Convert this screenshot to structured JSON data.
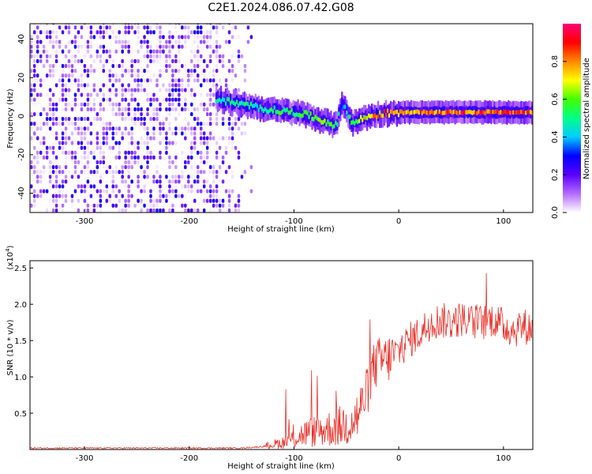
{
  "title": "C2E1.2024.086.07.42.G08",
  "chart_data": [
    {
      "type": "heatmap",
      "xlabel": "Height of straight line (km)",
      "ylabel": "Frequency (Hz)",
      "xlim": [
        -352,
        128
      ],
      "ylim": [
        -50,
        48
      ],
      "x_ticks": [
        -300,
        -200,
        -100,
        0,
        100
      ],
      "y_ticks": [
        -40,
        -20,
        0,
        20,
        40
      ],
      "colorbar": {
        "label": "Normalized spectral amplitude",
        "range": [
          0.0,
          1.0
        ],
        "ticks": [
          "0.0",
          "0.2",
          "0.4",
          "0.6",
          "0.8"
        ],
        "colors": [
          "#ffffff",
          "#b36bff",
          "#5a00ff",
          "#0000ff",
          "#00ccff",
          "#00ff88",
          "#44ff00",
          "#ffff00",
          "#ff8800",
          "#ff0000",
          "#ff0077"
        ]
      },
      "noise_region": {
        "x_from": -352,
        "x_to": -140,
        "level": 0.3
      },
      "ridge_trace": [
        {
          "x": -175,
          "y": 9,
          "amp": 0.45
        },
        {
          "x": -160,
          "y": 7,
          "amp": 0.5
        },
        {
          "x": -140,
          "y": 5,
          "amp": 0.5
        },
        {
          "x": -120,
          "y": 3,
          "amp": 0.55
        },
        {
          "x": -100,
          "y": 2,
          "amp": 0.55
        },
        {
          "x": -85,
          "y": 0,
          "amp": 0.6
        },
        {
          "x": -70,
          "y": -3,
          "amp": 0.6
        },
        {
          "x": -60,
          "y": -5,
          "amp": 0.55
        },
        {
          "x": -55,
          "y": 8,
          "amp": 0.3
        },
        {
          "x": -45,
          "y": -4,
          "amp": 0.6
        },
        {
          "x": -35,
          "y": -1,
          "amp": 0.7
        },
        {
          "x": -20,
          "y": 1,
          "amp": 0.8
        },
        {
          "x": 0,
          "y": 2,
          "amp": 0.85
        },
        {
          "x": 50,
          "y": 2,
          "amp": 0.9
        },
        {
          "x": 128,
          "y": 2,
          "amp": 0.9
        }
      ],
      "style": {
        "color_scale": "rainbow",
        "grid": false
      }
    },
    {
      "type": "line",
      "xlabel": "Height of straight line (km)",
      "ylabel": "SNR (10 * v/v)",
      "y_multiplier": "(x10^4)",
      "xlim": [
        -352,
        128
      ],
      "ylim": [
        0,
        2.6
      ],
      "x_ticks": [
        -300,
        -200,
        -100,
        0,
        100
      ],
      "y_ticks": [
        0.5,
        1.0,
        1.5,
        2.0,
        2.5
      ],
      "series": [
        {
          "color": "#e8312a",
          "x": [
            -352,
            -300,
            -250,
            -200,
            -150,
            -130,
            -110,
            -100,
            -90,
            -80,
            -70,
            -60,
            -50,
            -40,
            -30,
            -25,
            -20,
            -10,
            0,
            10,
            20,
            30,
            40,
            50,
            60,
            70,
            80,
            90,
            100,
            110,
            120,
            128
          ],
          "y": [
            0.02,
            0.02,
            0.02,
            0.02,
            0.02,
            0.04,
            0.1,
            0.15,
            0.22,
            0.25,
            0.28,
            0.3,
            0.35,
            0.45,
            0.8,
            1.1,
            1.2,
            1.25,
            1.35,
            1.5,
            1.6,
            1.75,
            1.78,
            1.75,
            1.8,
            1.75,
            1.75,
            1.8,
            1.7,
            1.65,
            1.7,
            1.65
          ]
        }
      ]
    }
  ]
}
